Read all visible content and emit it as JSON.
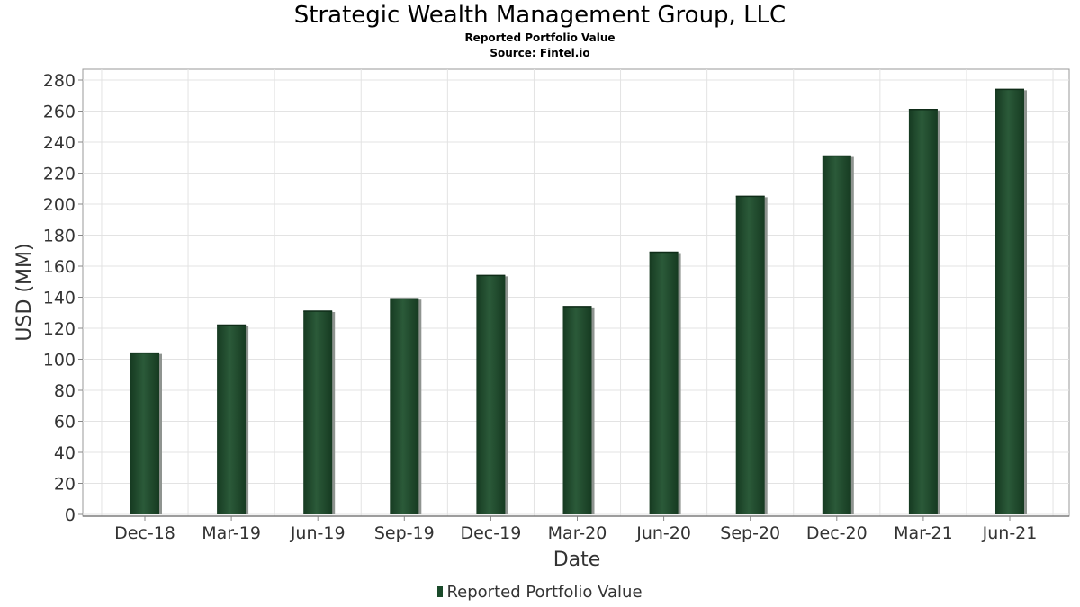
{
  "title": "Strategic Wealth Management Group, LLC",
  "subtitle": "Reported Portfolio Value",
  "source": "Source: Fintel.io",
  "chart_data": {
    "type": "bar",
    "categories": [
      "Dec-18",
      "Mar-19",
      "Jun-19",
      "Sep-19",
      "Dec-19",
      "Mar-20",
      "Jun-20",
      "Sep-20",
      "Dec-20",
      "Mar-21",
      "Jun-21"
    ],
    "series": [
      {
        "name": "Reported Portfolio Value",
        "values": [
          104,
          122,
          131,
          139,
          154,
          134,
          169,
          205,
          231,
          261,
          274
        ]
      }
    ],
    "xlabel": "Date",
    "ylabel": "USD (MM)",
    "ylim": [
      0,
      287
    ],
    "yticks": [
      0,
      20,
      40,
      60,
      80,
      100,
      120,
      140,
      160,
      180,
      200,
      220,
      240,
      260,
      280
    ],
    "grid": true,
    "legend": "bottom-center",
    "colors": {
      "bar": "#1f4a2c",
      "bar_highlight": "#2e5e3c",
      "bar_shadow": "#8f9490",
      "grid": "#e3e3e3",
      "axis": "#888888"
    }
  }
}
